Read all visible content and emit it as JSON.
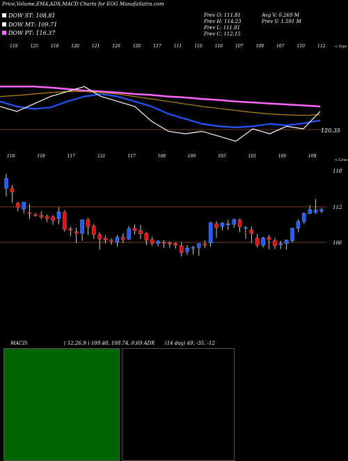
{
  "header": {
    "title": "Price,Volume,EMA,ADX,MACD Charts for EOG",
    "site": "MunafaSutra.com"
  },
  "legend": {
    "dow_st": "DOW ST: 108.81",
    "dow_mt": "DOW MT: 109.71",
    "dow_pt": "DOW PT: 116.37",
    "colors": {
      "st": "#ffffff",
      "mt": "#ffffff",
      "pt": "#ff66ff"
    }
  },
  "quote": {
    "prev_open": "Prev  O: 111.81",
    "prev_high": "Prev  H: 114.23",
    "prev_low": "Prev  L: 111.81",
    "prev_close": "Prev  C: 112.15",
    "avg_vol": "Avg V: 0.269 M",
    "prev_vol": "Prev  V: 1.591 M"
  },
  "labels": {
    "tops": "< Tops",
    "lows": "< Lows",
    "ema_last": "120.35",
    "macd_title": "MACD:",
    "macd_values": "( 12,26,9 ) 109.48, 108.74, 0.69 ADX",
    "adx_values": "(14  day) 49,  -35,  -12"
  },
  "top_labels": [
    "119",
    "125",
    "118",
    "120",
    "121",
    "126",
    "120",
    "117",
    "111",
    "110",
    "116",
    "107",
    "109",
    "107",
    "110",
    "112"
  ],
  "low_labels": [
    "116",
    "118",
    "117",
    "121",
    "117",
    "108",
    "109",
    "105",
    "103",
    "106",
    "109"
  ],
  "price_axis": [
    "118",
    "112",
    "106"
  ],
  "chart_data": [
    {
      "type": "line",
      "title": "EMA",
      "series": [
        {
          "name": "EMA PT",
          "color": "#ff66ff",
          "values": [
            126,
            126,
            126,
            125.8,
            125.5,
            125.2,
            125,
            124.8,
            124.5,
            124.3,
            124,
            123.8,
            123.5,
            123.3,
            123,
            122.8,
            122.6,
            122.4,
            122.2,
            122
          ]
        },
        {
          "name": "EMA MT",
          "color": "#b8860b",
          "values": [
            124,
            124.2,
            124.5,
            124.8,
            125,
            125,
            124.8,
            124.5,
            124,
            123.5,
            123,
            122.5,
            122,
            121.6,
            121.2,
            120.8,
            120.5,
            120.3,
            120.2,
            120.35
          ]
        },
        {
          "name": "EMA ST",
          "color": "#2255ff",
          "values": [
            123,
            122,
            121.5,
            121.8,
            123,
            124,
            124.5,
            124,
            123,
            122,
            120.5,
            119.5,
            118.5,
            118,
            117.8,
            118,
            118.5,
            118.2,
            118.6,
            119.2
          ]
        },
        {
          "name": "Price",
          "color": "#ffffff",
          "values": [
            122,
            121,
            122.5,
            124,
            125,
            126,
            124,
            123,
            122,
            119,
            117,
            116.5,
            117,
            116,
            115,
            117.5,
            116.5,
            118,
            117.5,
            121
          ]
        }
      ]
    },
    {
      "type": "candlestick",
      "title": "Price",
      "ylim": [
        104,
        120
      ],
      "candles": [
        [
          116.3,
          118.8,
          118,
          114.8
        ],
        [
          116.2,
          116.8,
          115.6,
          113.7
        ],
        [
          113.6,
          113.9,
          112.9,
          112.2
        ],
        [
          112.6,
          112.7,
          113.8,
          111.8
        ],
        [
          111.9,
          113.5,
          111.8,
          110.8
        ],
        [
          111.6,
          111.9,
          111.5,
          111.2
        ],
        [
          111.5,
          112.2,
          111.2,
          110.8
        ],
        [
          111.3,
          111.6,
          110.9,
          110.3
        ],
        [
          111.2,
          111.5,
          110.6,
          109.8
        ],
        [
          110.9,
          112.9,
          112.1,
          109.9
        ],
        [
          112,
          112.4,
          109,
          108.6
        ],
        [
          109.1,
          109.5,
          108.9,
          107.8
        ],
        [
          108.6,
          109.3,
          108.3,
          106.6
        ],
        [
          108.3,
          109.4,
          110.7,
          107
        ],
        [
          110.7,
          111,
          109.5,
          108
        ],
        [
          109.6,
          109.9,
          108.1,
          107.3
        ],
        [
          108.1,
          108.5,
          107.3,
          105.4
        ],
        [
          107.4,
          107.9,
          107.1,
          106.5
        ],
        [
          107.1,
          107.4,
          106.9,
          106.3
        ],
        [
          106.8,
          108,
          107.6,
          105.9
        ],
        [
          107.6,
          108.3,
          107.2,
          106.6
        ],
        [
          107.3,
          109.6,
          109.1,
          107.1
        ],
        [
          109.2,
          109.9,
          108.8,
          108.1
        ],
        [
          108.8,
          109.8,
          108.2,
          107.3
        ],
        [
          108.3,
          108.5,
          107.1,
          106.2
        ],
        [
          107.2,
          107.7,
          106.5,
          106.1
        ],
        [
          106.5,
          107.1,
          106.9,
          106
        ],
        [
          106.7,
          107.1,
          106.6,
          105.7
        ],
        [
          106.6,
          106.9,
          106.4,
          105.7
        ],
        [
          106.5,
          106.7,
          106.2,
          105.6
        ],
        [
          106.1,
          106.7,
          104.9,
          104.2
        ],
        [
          105.1,
          106.2,
          105.7,
          104.5
        ],
        [
          105.7,
          106.1,
          105.8,
          104.6
        ],
        [
          105.8,
          106.5,
          106.5,
          104.3
        ],
        [
          106.4,
          107.1,
          106.2,
          105.7
        ],
        [
          106.6,
          110.3,
          110.2,
          105.9
        ],
        [
          110,
          110.5,
          109.3,
          107.5
        ],
        [
          109.5,
          110.3,
          110.1,
          108.8
        ],
        [
          109.8,
          110.7,
          110,
          108.9
        ],
        [
          109.9,
          110.8,
          110.8,
          109.3
        ],
        [
          110.7,
          110.9,
          109.5,
          108.5
        ],
        [
          109.3,
          109.6,
          109.3,
          107.3
        ],
        [
          108.9,
          109.5,
          108.3,
          106.6
        ],
        [
          107.5,
          108.2,
          106.2,
          105.8
        ],
        [
          106.2,
          107.7,
          107.5,
          105.8
        ],
        [
          107.6,
          108,
          107.2,
          105.5
        ],
        [
          107,
          107.5,
          106.1,
          105.5
        ],
        [
          106.3,
          107,
          106.5,
          105.5
        ],
        [
          106.5,
          107.2,
          107.1,
          105.4
        ],
        [
          107,
          109.3,
          109.2,
          106.7
        ],
        [
          109.2,
          110.8,
          110.4,
          108.5
        ],
        [
          110.4,
          112,
          111.8,
          110
        ],
        [
          111.8,
          113.3,
          112.5,
          111.7
        ],
        [
          112,
          114.4,
          112.4,
          111.8
        ],
        [
          112.2,
          112.8,
          112.5,
          111.9
        ]
      ]
    }
  ]
}
